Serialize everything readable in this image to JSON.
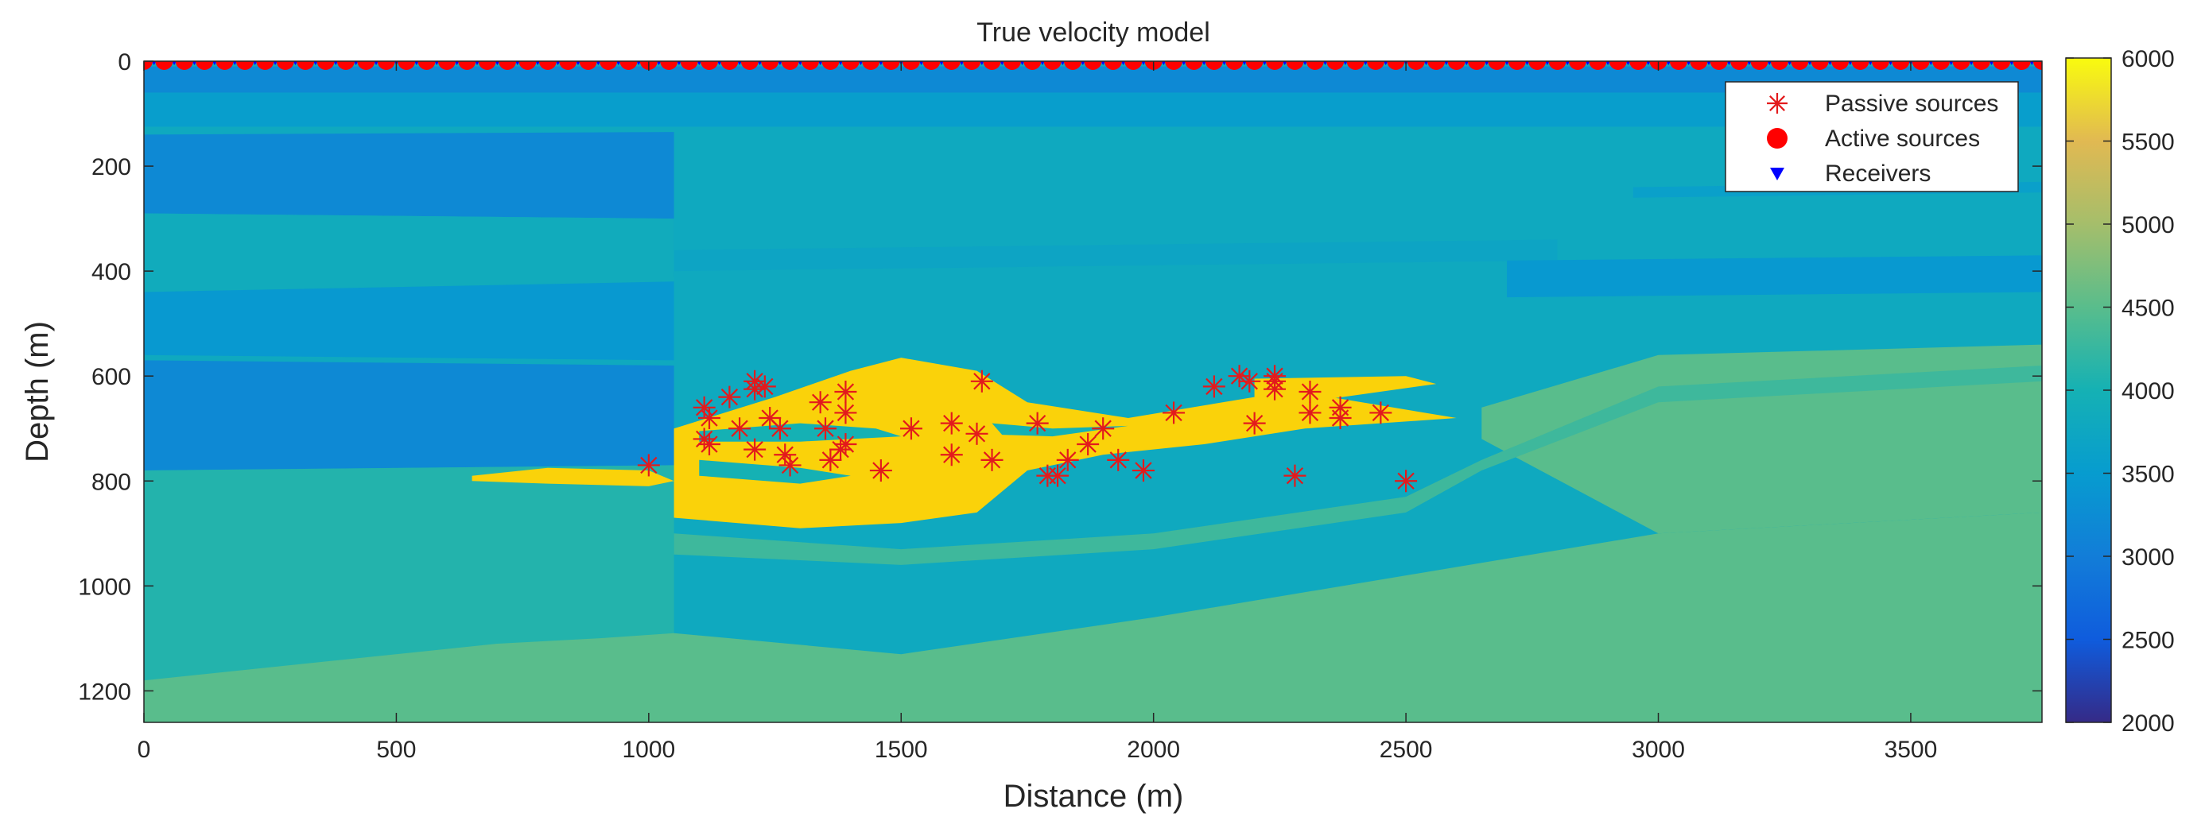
{
  "chart_data": {
    "type": "heatmap",
    "title": "True velocity model",
    "xlabel": "Distance (m)",
    "ylabel": "Depth (m)",
    "xlim": [
      0,
      3760
    ],
    "ylim": [
      1260,
      0
    ],
    "xticks": [
      0,
      500,
      1000,
      1500,
      2000,
      2500,
      3000,
      3500
    ],
    "yticks": [
      0,
      200,
      400,
      600,
      800,
      1000,
      1200
    ],
    "colorbar": {
      "range": [
        2000,
        6000
      ],
      "ticks": [
        2000,
        2500,
        3000,
        3500,
        4000,
        4500,
        5000,
        5500,
        6000
      ],
      "colormap": "parula"
    },
    "legend": {
      "position": "top-right",
      "entries": [
        {
          "label": "Passive sources",
          "marker": "asterisk",
          "color": "#e31a1c"
        },
        {
          "label": "Active sources",
          "marker": "circle",
          "color": "#ff0000"
        },
        {
          "label": "Receivers",
          "marker": "triangle-down",
          "color": "#0000ff"
        }
      ]
    },
    "velocity_layers": [
      {
        "v": 3200,
        "pts": [
          [
            0,
            10
          ],
          [
            3760,
            10
          ],
          [
            3760,
            60
          ],
          [
            0,
            60
          ]
        ]
      },
      {
        "v": 3550,
        "pts": [
          [
            0,
            60
          ],
          [
            3760,
            60
          ],
          [
            3760,
            125
          ],
          [
            0,
            125
          ]
        ]
      },
      {
        "v": 3200,
        "pts": [
          [
            0,
            140
          ],
          [
            1050,
            135
          ],
          [
            1050,
            300
          ],
          [
            0,
            290
          ]
        ]
      },
      {
        "v": 3350,
        "pts": [
          [
            700,
            300
          ],
          [
            1050,
            300
          ],
          [
            1050,
            410
          ],
          [
            900,
            380
          ],
          [
            700,
            330
          ]
        ]
      },
      {
        "v": 3850,
        "pts": [
          [
            0,
            290
          ],
          [
            1050,
            300
          ],
          [
            1050,
            420
          ],
          [
            0,
            440
          ]
        ]
      },
      {
        "v": 3450,
        "pts": [
          [
            0,
            440
          ],
          [
            1050,
            420
          ],
          [
            1050,
            570
          ],
          [
            0,
            560
          ]
        ]
      },
      {
        "v": 3200,
        "pts": [
          [
            0,
            570
          ],
          [
            1050,
            580
          ],
          [
            1050,
            770
          ],
          [
            0,
            780
          ]
        ]
      },
      {
        "v": 3700,
        "pts": [
          [
            1050,
            360
          ],
          [
            2800,
            340
          ],
          [
            2800,
            380
          ],
          [
            1050,
            400
          ]
        ]
      },
      {
        "v": 3450,
        "pts": [
          [
            2700,
            380
          ],
          [
            3760,
            370
          ],
          [
            3760,
            440
          ],
          [
            2700,
            450
          ]
        ]
      },
      {
        "v": 3600,
        "pts": [
          [
            2950,
            240
          ],
          [
            3760,
            230
          ],
          [
            3760,
            250
          ],
          [
            2950,
            260
          ]
        ]
      },
      {
        "v": 4100,
        "pts": [
          [
            0,
            780
          ],
          [
            1050,
            770
          ],
          [
            1050,
            1260
          ],
          [
            0,
            1260
          ]
        ]
      },
      {
        "v": 4500,
        "pts": [
          [
            0,
            1180
          ],
          [
            300,
            1150
          ],
          [
            700,
            1110
          ],
          [
            900,
            1100
          ],
          [
            1050,
            1090
          ],
          [
            1500,
            1130
          ],
          [
            2000,
            1060
          ],
          [
            2500,
            980
          ],
          [
            3000,
            900
          ],
          [
            3760,
            860
          ],
          [
            3760,
            1260
          ],
          [
            0,
            1260
          ]
        ]
      },
      {
        "v": 4500,
        "pts": [
          [
            2650,
            660
          ],
          [
            3000,
            560
          ],
          [
            3760,
            540
          ],
          [
            3760,
            860
          ],
          [
            3000,
            900
          ],
          [
            2650,
            720
          ]
        ]
      },
      {
        "v": 4300,
        "pts": [
          [
            1050,
            900
          ],
          [
            1500,
            930
          ],
          [
            2000,
            900
          ],
          [
            2500,
            830
          ],
          [
            2650,
            760
          ],
          [
            3000,
            620
          ],
          [
            3760,
            580
          ],
          [
            3760,
            610
          ],
          [
            3000,
            650
          ],
          [
            2650,
            780
          ],
          [
            2500,
            860
          ],
          [
            2000,
            930
          ],
          [
            1500,
            960
          ],
          [
            1050,
            940
          ]
        ]
      },
      {
        "v": 5300,
        "pts": [
          [
            1050,
            700
          ],
          [
            1250,
            640
          ],
          [
            1400,
            590
          ],
          [
            1500,
            565
          ],
          [
            1650,
            590
          ],
          [
            1750,
            650
          ],
          [
            1950,
            680
          ],
          [
            2200,
            640
          ],
          [
            2350,
            640
          ],
          [
            2600,
            680
          ],
          [
            2300,
            700
          ],
          [
            2100,
            730
          ],
          [
            1900,
            750
          ],
          [
            1750,
            780
          ],
          [
            1650,
            860
          ],
          [
            1500,
            880
          ],
          [
            1300,
            890
          ],
          [
            1050,
            870
          ]
        ]
      },
      {
        "v": 5300,
        "pts": [
          [
            650,
            790
          ],
          [
            800,
            775
          ],
          [
            1000,
            780
          ],
          [
            1050,
            800
          ],
          [
            1000,
            810
          ],
          [
            800,
            805
          ],
          [
            650,
            800
          ]
        ]
      },
      {
        "v": 5300,
        "pts": [
          [
            2200,
            605
          ],
          [
            2500,
            600
          ],
          [
            2560,
            615
          ],
          [
            2300,
            650
          ],
          [
            2200,
            640
          ]
        ]
      },
      {
        "v": 4000,
        "pts": [
          [
            1100,
            705
          ],
          [
            1300,
            690
          ],
          [
            1450,
            700
          ],
          [
            1500,
            715
          ],
          [
            1300,
            725
          ],
          [
            1100,
            725
          ]
        ]
      },
      {
        "v": 4000,
        "pts": [
          [
            1680,
            690
          ],
          [
            1800,
            700
          ],
          [
            1950,
            695
          ],
          [
            1800,
            715
          ],
          [
            1700,
            712
          ]
        ]
      },
      {
        "v": 4000,
        "pts": [
          [
            1100,
            760
          ],
          [
            1300,
            775
          ],
          [
            1400,
            790
          ],
          [
            1300,
            805
          ],
          [
            1100,
            790
          ]
        ]
      }
    ],
    "passive_sources": [
      [
        1000,
        770
      ],
      [
        1110,
        660
      ],
      [
        1120,
        680
      ],
      [
        1110,
        720
      ],
      [
        1120,
        730
      ],
      [
        1160,
        640
      ],
      [
        1180,
        700
      ],
      [
        1210,
        610
      ],
      [
        1210,
        625
      ],
      [
        1230,
        620
      ],
      [
        1210,
        740
      ],
      [
        1240,
        680
      ],
      [
        1260,
        700
      ],
      [
        1270,
        750
      ],
      [
        1280,
        770
      ],
      [
        1340,
        650
      ],
      [
        1350,
        700
      ],
      [
        1360,
        760
      ],
      [
        1390,
        630
      ],
      [
        1390,
        670
      ],
      [
        1390,
        730
      ],
      [
        1380,
        740
      ],
      [
        1460,
        780
      ],
      [
        1520,
        700
      ],
      [
        1600,
        690
      ],
      [
        1600,
        750
      ],
      [
        1650,
        710
      ],
      [
        1660,
        610
      ],
      [
        1680,
        760
      ],
      [
        1770,
        690
      ],
      [
        1790,
        790
      ],
      [
        1810,
        790
      ],
      [
        1830,
        760
      ],
      [
        1870,
        730
      ],
      [
        1900,
        700
      ],
      [
        1930,
        760
      ],
      [
        1980,
        780
      ],
      [
        2040,
        670
      ],
      [
        2120,
        620
      ],
      [
        2170,
        600
      ],
      [
        2190,
        610
      ],
      [
        2200,
        690
      ],
      [
        2240,
        610
      ],
      [
        2240,
        600
      ],
      [
        2240,
        625
      ],
      [
        2280,
        790
      ],
      [
        2310,
        630
      ],
      [
        2310,
        670
      ],
      [
        2370,
        660
      ],
      [
        2370,
        680
      ],
      [
        2450,
        670
      ],
      [
        2500,
        800
      ]
    ],
    "active_sources": {
      "depth": 0,
      "x_start": 0,
      "x_end": 3760,
      "spacing": 40
    },
    "receivers": {
      "depth": 0,
      "x_start": 0,
      "x_end": 3760,
      "spacing": 10
    }
  }
}
